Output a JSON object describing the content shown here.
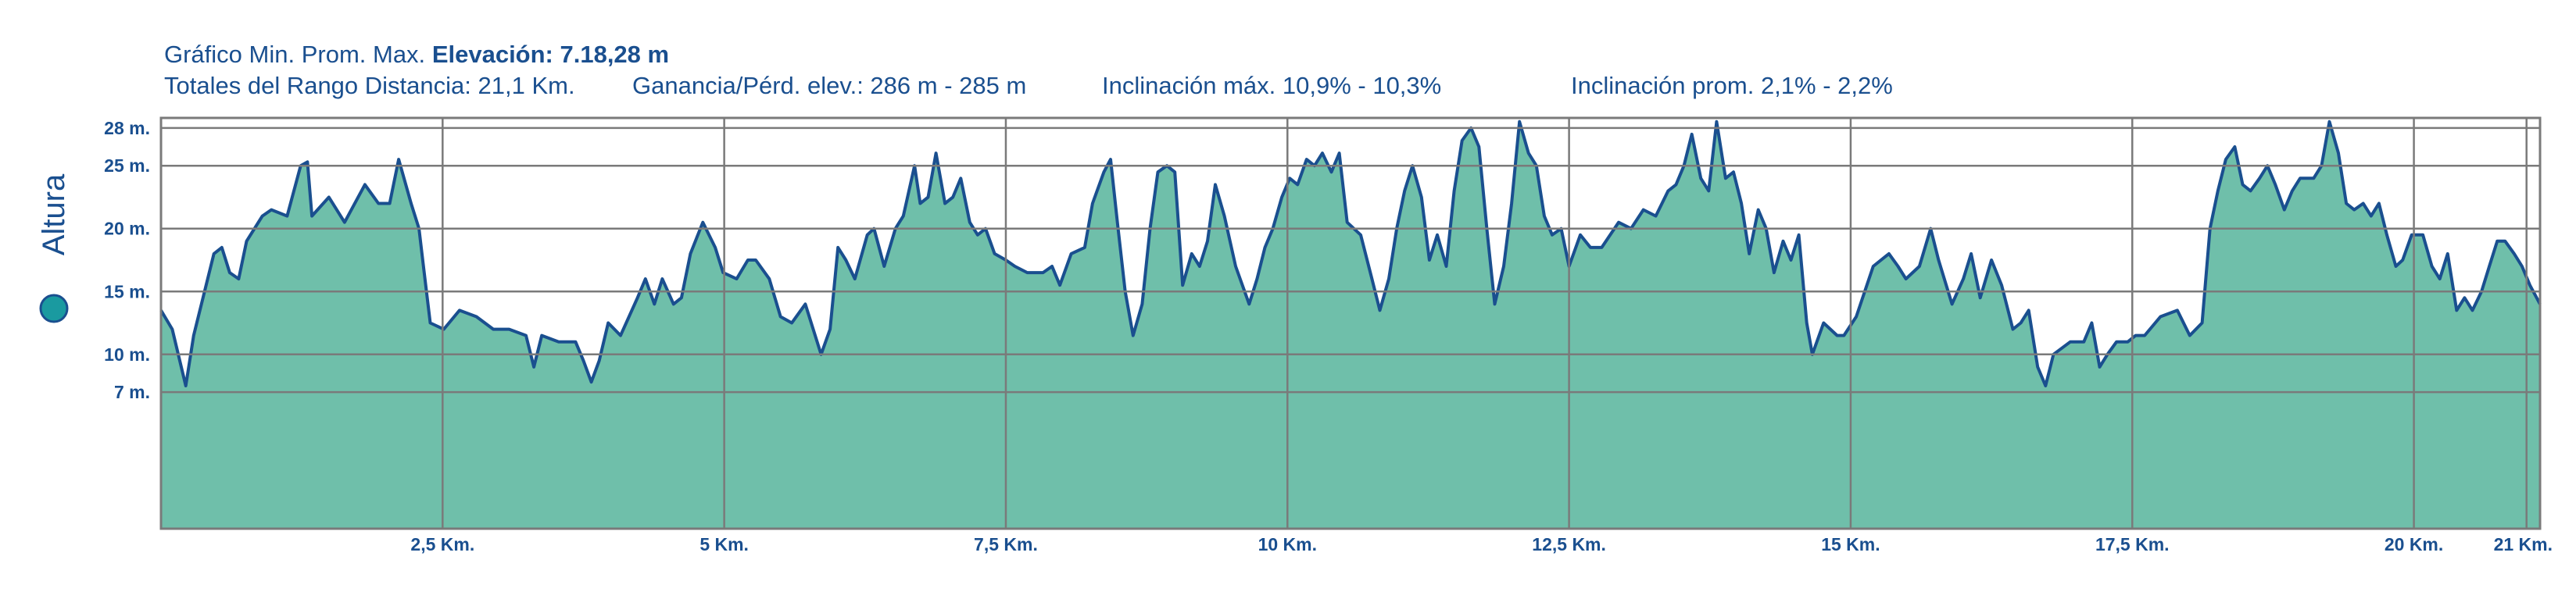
{
  "chart_data": {
    "type": "area",
    "title": "Gráfico Min. Prom. Max.",
    "summary": "Elevación: 7.18,28 m",
    "stats": [
      "Totales del Rango Distancia: 21,1 Km.",
      "Ganancia/Pérd. elev.: 286 m - 285 m",
      "Inclinación máx. 10,9% - 10,3%",
      "Inclinación prom. 2,1% - 2,2%"
    ],
    "legend": "left",
    "grid": true,
    "xlim": [
      0,
      21.12
    ],
    "ylim": [
      -3.86,
      28.8
    ],
    "xticks": [
      {
        "value": 2.5,
        "label": "2,5 Km."
      },
      {
        "value": 5,
        "label": "5 Km."
      },
      {
        "value": 7.5,
        "label": "7,5 Km."
      },
      {
        "value": 10,
        "label": "10 Km."
      },
      {
        "value": 12.5,
        "label": "12,5 Km."
      },
      {
        "value": 15,
        "label": "15 Km."
      },
      {
        "value": 17.5,
        "label": "17,5 Km."
      },
      {
        "value": 20,
        "label": "20 Km."
      },
      {
        "value": 21,
        "label": "21 Km."
      }
    ],
    "yticks": [
      {
        "value": 28,
        "label": "28 m."
      },
      {
        "value": 25,
        "label": "25 m."
      },
      {
        "value": 20,
        "label": "20 m."
      },
      {
        "value": 15,
        "label": "15 m."
      },
      {
        "value": 10,
        "label": "10 m."
      },
      {
        "value": 7,
        "label": "7 m."
      }
    ],
    "x": [
      0,
      0.1,
      0.22,
      0.29,
      0.47,
      0.54,
      0.61,
      0.69,
      0.76,
      0.9,
      0.98,
      1.12,
      1.24,
      1.3,
      1.34,
      1.49,
      1.63,
      1.81,
      1.93,
      2.03,
      2.11,
      2.22,
      2.29,
      2.33,
      2.39,
      2.51,
      2.65,
      2.8,
      2.95,
      3.09,
      3.24,
      3.31,
      3.38,
      3.53,
      3.68,
      3.75,
      3.82,
      3.89,
      3.97,
      4.08,
      4.23,
      4.3,
      4.38,
      4.45,
      4.55,
      4.62,
      4.7,
      4.81,
      4.92,
      4.99,
      5.11,
      5.21,
      5.28,
      5.4,
      5.5,
      5.6,
      5.72,
      5.86,
      5.94,
      6.01,
      6.08,
      6.16,
      6.27,
      6.33,
      6.42,
      6.52,
      6.59,
      6.69,
      6.74,
      6.81,
      6.88,
      6.96,
      7.03,
      7.1,
      7.18,
      7.25,
      7.32,
      7.4,
      7.5,
      7.58,
      7.69,
      7.83,
      7.91,
      7.98,
      8.08,
      8.2,
      8.27,
      8.37,
      8.43,
      8.49,
      8.56,
      8.63,
      8.71,
      8.78,
      8.85,
      8.93,
      9.0,
      9.07,
      9.15,
      9.22,
      9.29,
      9.36,
      9.44,
      9.54,
      9.66,
      9.73,
      9.8,
      9.87,
      9.95,
      10.02,
      10.09,
      10.17,
      10.24,
      10.31,
      10.39,
      10.46,
      10.53,
      10.65,
      10.75,
      10.82,
      10.9,
      10.97,
      11.04,
      11.11,
      11.19,
      11.26,
      11.33,
      11.41,
      11.48,
      11.55,
      11.63,
      11.7,
      11.77,
      11.84,
      11.92,
      11.99,
      12.06,
      12.14,
      12.21,
      12.28,
      12.35,
      12.43,
      12.5,
      12.6,
      12.69,
      12.79,
      12.94,
      13.05,
      13.16,
      13.27,
      13.38,
      13.45,
      13.52,
      13.59,
      13.67,
      13.74,
      13.81,
      13.89,
      13.96,
      14.03,
      14.1,
      14.18,
      14.25,
      14.32,
      14.4,
      14.47,
      14.54,
      14.61,
      14.66,
      14.76,
      14.88,
      14.94,
      15.05,
      15.2,
      15.34,
      15.42,
      15.49,
      15.61,
      15.71,
      15.78,
      15.9,
      16.0,
      16.07,
      16.15,
      16.25,
      16.34,
      16.44,
      16.51,
      16.58,
      16.66,
      16.73,
      16.8,
      16.95,
      17.07,
      17.14,
      17.21,
      17.28,
      17.36,
      17.46,
      17.53,
      17.61,
      17.75,
      17.9,
      18.01,
      18.12,
      18.19,
      18.26,
      18.33,
      18.41,
      18.48,
      18.55,
      18.63,
      18.7,
      18.77,
      18.85,
      18.92,
      18.99,
      19.11,
      19.18,
      19.25,
      19.33,
      19.4,
      19.47,
      19.55,
      19.62,
      19.69,
      19.76,
      19.84,
      19.9,
      19.98,
      20.08,
      20.16,
      20.23,
      20.3,
      20.38,
      20.45,
      20.52,
      20.6,
      20.67,
      20.74,
      20.81,
      20.89,
      20.96,
      21.03,
      21.12
    ],
    "series": [
      {
        "name": "Altura",
        "color": "#6fbfaa",
        "line_color": "#1a4f8f",
        "marker_color": "#1a9aa0",
        "values": [
          13.5,
          12,
          7.5,
          11.5,
          18,
          18.5,
          16.5,
          16,
          19,
          21,
          21.5,
          21,
          25,
          25.3,
          21,
          22.5,
          20.5,
          23.5,
          22,
          22,
          25.5,
          22,
          20,
          17,
          12.5,
          12,
          13.5,
          13,
          12,
          12,
          11.5,
          9,
          11.5,
          11,
          11,
          9.5,
          7.8,
          9.5,
          12.5,
          11.5,
          14.5,
          16,
          14,
          16,
          14,
          14.5,
          18,
          20.5,
          18.5,
          16.5,
          16,
          17.5,
          17.5,
          16,
          13,
          12.5,
          14,
          10,
          12,
          18.5,
          17.5,
          16,
          19.5,
          20,
          17,
          20,
          21,
          25,
          22,
          22.5,
          26,
          22,
          22.5,
          24,
          20.5,
          19.5,
          20,
          18,
          17.5,
          17,
          16.5,
          16.5,
          17,
          15.5,
          18,
          18.5,
          22,
          24.5,
          25.5,
          20.5,
          15,
          11.5,
          14,
          20,
          24.5,
          25,
          24.5,
          15.5,
          18,
          17,
          19,
          23.5,
          21,
          17,
          14,
          16,
          18.5,
          20,
          22.5,
          24,
          23.5,
          25.5,
          25,
          26,
          24.5,
          26,
          20.5,
          19.5,
          16,
          13.5,
          16,
          20,
          23,
          25,
          22.5,
          17.5,
          19.5,
          17,
          23,
          27,
          28,
          26.5,
          20,
          14,
          17,
          22,
          28.5,
          26,
          25,
          21,
          19.5,
          20,
          17,
          19.5,
          18.5,
          18.5,
          20.5,
          20,
          21.5,
          21,
          23,
          23.5,
          25,
          27.5,
          24,
          23,
          28.5,
          24,
          24.5,
          22,
          18,
          21.5,
          20,
          16.5,
          19,
          17.5,
          19.5,
          12.5,
          10,
          12.5,
          11.5,
          11.5,
          13,
          17,
          18,
          17,
          16,
          17,
          20,
          17.5,
          14,
          16,
          18,
          14.5,
          17.5,
          15.5,
          12,
          12.5,
          13.5,
          9,
          7.5,
          10,
          11,
          11,
          12.5,
          9,
          10,
          11,
          11,
          11.5,
          11.5,
          13,
          13.5,
          11.5,
          12.5,
          20,
          23,
          25.5,
          26.5,
          23.5,
          23,
          24,
          25,
          23.5,
          21.5,
          23,
          24,
          24,
          25,
          28.5,
          26,
          22,
          21.5,
          22,
          21,
          22,
          19.5,
          17,
          17.5,
          19.5,
          19.5,
          17,
          16,
          18,
          13.5,
          14.5,
          13.5,
          15,
          17,
          19,
          19,
          18,
          17,
          15.5,
          14
        ]
      }
    ]
  }
}
